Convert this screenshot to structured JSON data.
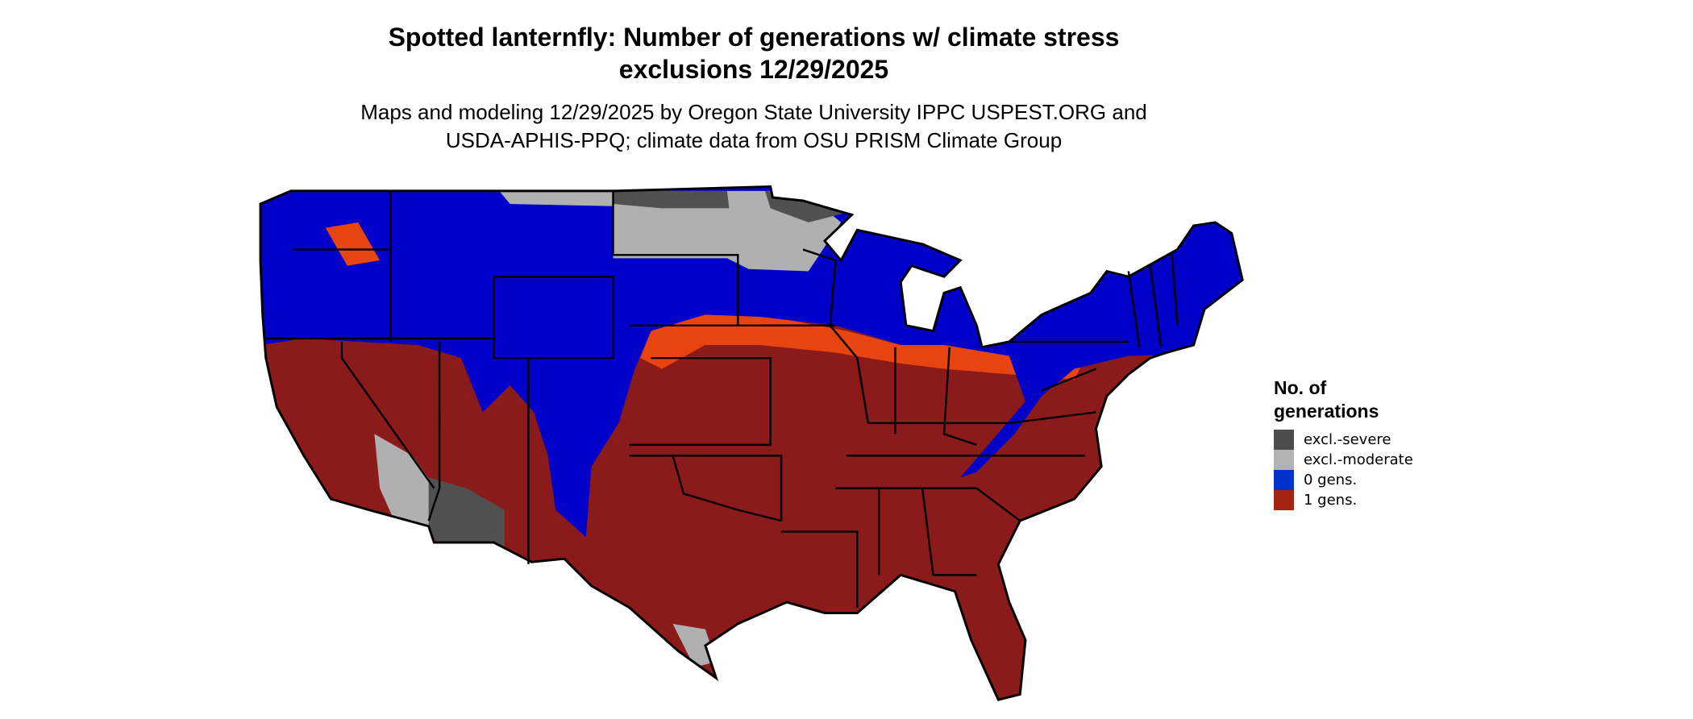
{
  "title": {
    "line1": "Spotted lanternfly: Number of generations w/ climate stress",
    "line2": "exclusions 12/29/2025"
  },
  "subtitle": {
    "line1": "Maps and modeling 12/29/2025 by Oregon State University IPPC USPEST.ORG and",
    "line2": "USDA-APHIS-PPQ; climate data from OSU PRISM Climate Group"
  },
  "legend": {
    "title_line1": "No. of",
    "title_line2": "generations",
    "items": [
      {
        "label": "excl.-severe",
        "color": "#4d4d4d"
      },
      {
        "label": "excl.-moderate",
        "color": "#b3b3b3"
      },
      {
        "label": "0 gens.",
        "color": "#0033cc"
      },
      {
        "label": "1 gens.",
        "color": "#a52313"
      }
    ]
  },
  "map_colors": {
    "zero_gens": "#0000c8",
    "one_gen": "#8b1a1a",
    "transition": "#e8440f",
    "excl_moderate": "#b0b0b0",
    "excl_severe": "#505050"
  }
}
